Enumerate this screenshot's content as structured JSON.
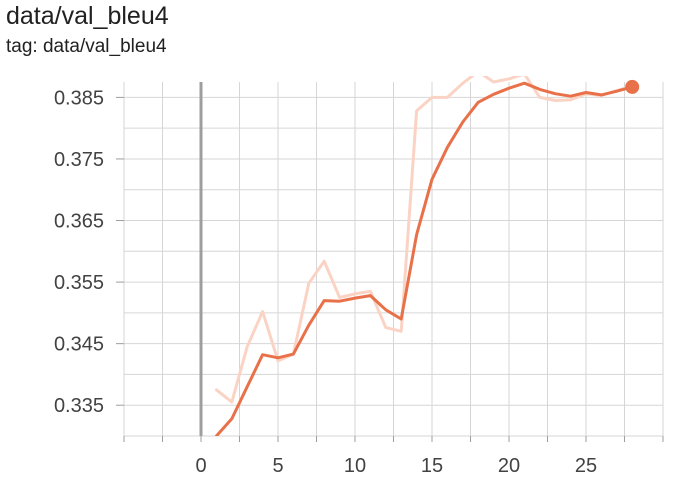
{
  "chart_data": {
    "type": "line",
    "title": "data/val_bleu4",
    "subtitle": "tag: data/val_bleu4",
    "xlabel": "",
    "ylabel": "",
    "xlim": [
      -5,
      30
    ],
    "ylim": [
      0.33,
      0.3875
    ],
    "x_ticks": [
      0,
      5,
      10,
      15,
      20,
      25
    ],
    "y_ticks": [
      0.335,
      0.345,
      0.355,
      0.365,
      0.375,
      0.385
    ],
    "y_minor_ticks": [
      0.34,
      0.35,
      0.36,
      0.37,
      0.38
    ],
    "grid": true,
    "legend": "none",
    "colors": {
      "smoothed": "#e8714a",
      "raw": "#fbd3c4",
      "grid": "#d6d6d6",
      "zero_line": "#9e9e9e"
    },
    "series": [
      {
        "role": "raw",
        "x": [
          1,
          2,
          3,
          4,
          5,
          6,
          7,
          8,
          9,
          10,
          11,
          12,
          13,
          14,
          15,
          16,
          17,
          18,
          19,
          20,
          21,
          22,
          23,
          24,
          25,
          26,
          27,
          28
        ],
        "values": [
          0.3375,
          0.3355,
          0.3445,
          0.3502,
          0.3422,
          0.3433,
          0.3548,
          0.3584,
          0.3525,
          0.3531,
          0.3535,
          0.3476,
          0.347,
          0.3828,
          0.385,
          0.385,
          0.3873,
          0.3892,
          0.3875,
          0.388,
          0.3888,
          0.385,
          0.3845,
          0.3846,
          0.3856,
          0.3853,
          0.3861,
          0.3868
        ]
      },
      {
        "role": "smoothed",
        "x": [
          1,
          2,
          3,
          4,
          5,
          6,
          7,
          8,
          9,
          10,
          11,
          12,
          13,
          14,
          15,
          16,
          17,
          18,
          19,
          20,
          21,
          22,
          23,
          24,
          25,
          26,
          27,
          28
        ],
        "values": [
          0.33,
          0.3328,
          0.338,
          0.3432,
          0.3427,
          0.3433,
          0.348,
          0.352,
          0.3519,
          0.3524,
          0.3528,
          0.3505,
          0.349,
          0.3627,
          0.3717,
          0.3769,
          0.381,
          0.3842,
          0.3855,
          0.3865,
          0.3873,
          0.3863,
          0.3856,
          0.3852,
          0.3858,
          0.3854,
          0.386,
          0.3867
        ]
      }
    ]
  }
}
